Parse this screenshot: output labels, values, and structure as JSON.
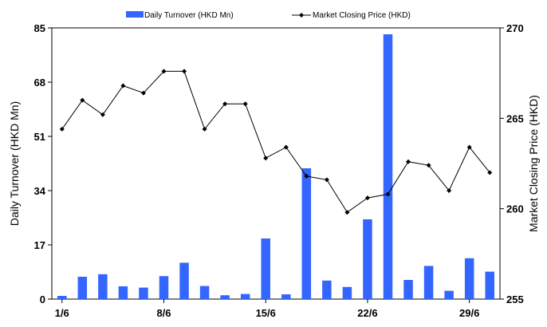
{
  "chart_data": {
    "type": "bar+line",
    "title": "",
    "legend": {
      "placement": "top",
      "entries": [
        "Daily Turnover (HKD Mn)",
        "Market Closing Price (HKD)"
      ]
    },
    "x_tick_labels": [
      "1/6",
      "8/6",
      "15/6",
      "22/6",
      "29/6"
    ],
    "x_tick_indices": [
      0,
      5,
      10,
      15,
      20
    ],
    "left_axis": {
      "label": "Daily Turnover (HKD Mn)",
      "range": [
        0,
        85
      ],
      "ticks": [
        "0",
        "17",
        "34",
        "51",
        "68",
        "85"
      ]
    },
    "right_axis": {
      "label": "Market Closing Price (HKD)",
      "range": [
        255,
        270
      ],
      "ticks": [
        "255",
        "260",
        "265",
        "270"
      ]
    },
    "series": [
      {
        "name": "Daily Turnover (HKD Mn)",
        "type": "bar",
        "axis": "left",
        "color": "#3366ff",
        "values": [
          1.0,
          7.0,
          7.8,
          4.0,
          3.6,
          7.2,
          11.4,
          4.1,
          1.2,
          1.6,
          19.0,
          1.5,
          41.0,
          5.8,
          3.8,
          25.0,
          83.0,
          6.0,
          10.4,
          2.6,
          12.8,
          8.6
        ]
      },
      {
        "name": "Market Closing Price (HKD)",
        "type": "line",
        "axis": "right",
        "color": "#000000",
        "values": [
          264.4,
          266.0,
          265.2,
          266.8,
          266.4,
          267.6,
          267.6,
          264.4,
          265.8,
          265.8,
          262.8,
          263.4,
          261.8,
          261.6,
          259.8,
          260.6,
          260.8,
          262.6,
          262.4,
          261.0,
          263.4,
          262.0
        ]
      }
    ]
  }
}
